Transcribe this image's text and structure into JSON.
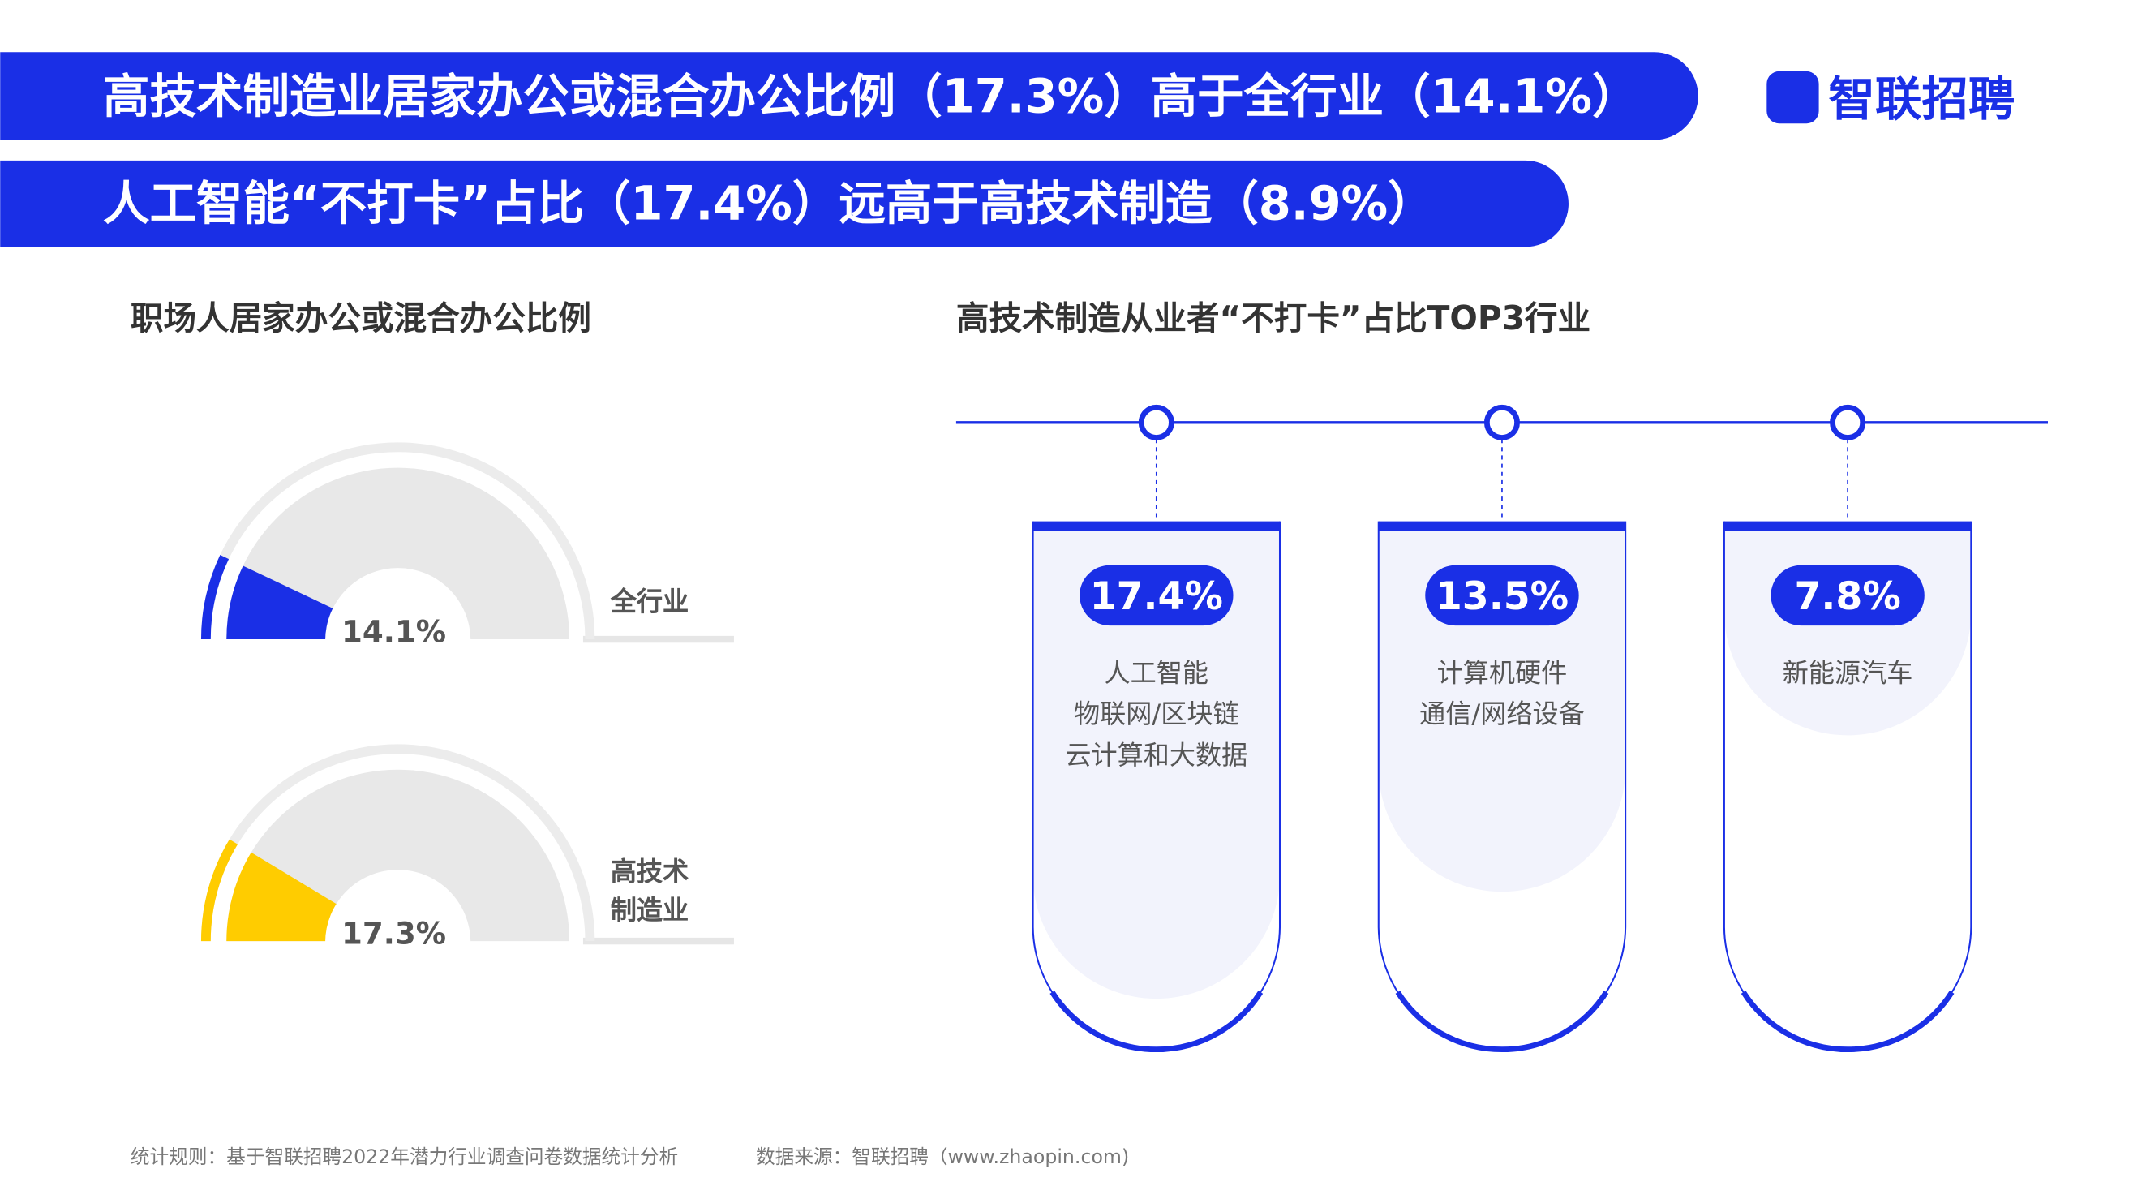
{
  "header": {
    "headline1": "高技术制造业居家办公或混合办公比例（17.3%）高于全行业（14.1%）",
    "headline2": "人工智能“不打卡”占比（17.4%）远高于高技术制造（8.9%）",
    "logo": "智联招聘"
  },
  "chart_data": [
    {
      "type": "gauge",
      "title": "职场人居家办公或混合办公比例",
      "categories": [
        "全行业",
        "高技术制造业"
      ],
      "values": [
        14.1,
        17.3
      ],
      "value_labels": [
        "14.1%",
        "17.3%"
      ],
      "colors": [
        "#1a2fe6",
        "#ffcc00"
      ],
      "ylim": [
        0,
        100
      ]
    },
    {
      "type": "cards",
      "title": "高技术制造从业者“不打卡”占比TOP3行业",
      "values": [
        17.4,
        13.5,
        7.8
      ],
      "value_labels": [
        "17.4%",
        "13.5%",
        "7.8%"
      ],
      "groups": [
        [
          "人工智能",
          "物联网/区块链",
          "云计算和大数据"
        ],
        [
          "计算机硬件",
          "通信/网络设备"
        ],
        [
          "新能源汽车"
        ]
      ],
      "color": "#1a2fe6"
    }
  ],
  "footer": {
    "rule": "统计规则：基于智联招聘2022年潜力行业调查问卷数据统计分析",
    "source": "数据来源：智联招聘（www.zhaopin.com)"
  }
}
